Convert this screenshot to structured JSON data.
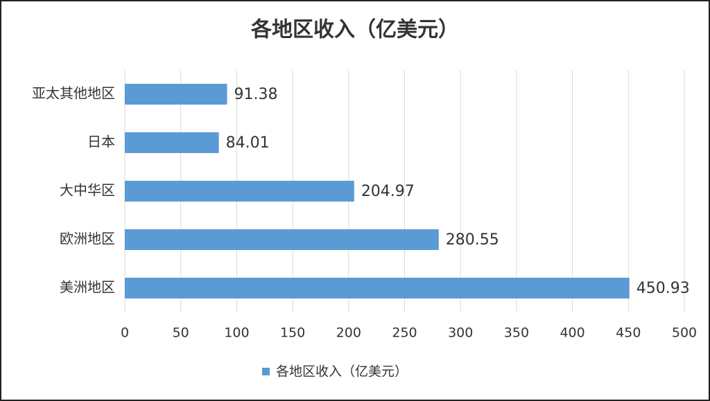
{
  "chart_data": {
    "type": "barh",
    "title": "各地区收入（亿美元）",
    "categories": [
      "亚太其他地区",
      "日本",
      "大中华区",
      "欧洲地区",
      "美洲地区"
    ],
    "series": [
      {
        "name": "各地区收入（亿美元）",
        "color": "#5b9bd5",
        "values": [
          91.38,
          84.01,
          204.97,
          280.55,
          450.93
        ]
      }
    ],
    "xlim": [
      0,
      500
    ],
    "xticks": [
      0,
      50,
      100,
      150,
      200,
      250,
      300,
      350,
      400,
      450,
      500
    ],
    "grid": true,
    "legend": "bottom"
  }
}
